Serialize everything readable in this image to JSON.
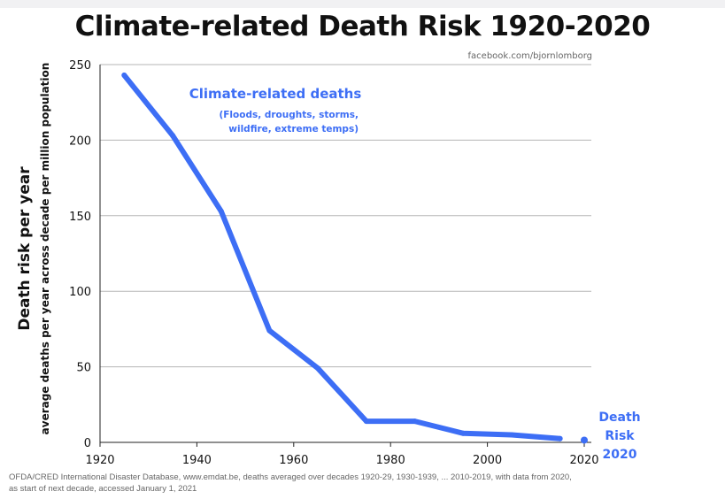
{
  "title": "Climate-related Death Risk 1920-2020",
  "source_credit": "facebook.com/bjornlomborg",
  "ylabel_main": "Death risk per year",
  "ylabel_sub": "average deaths per year across decade per million population",
  "footnote_line1": "OFDA/CRED International Disaster Database, www.emdat.be, deaths averaged over decades 1920-29, 1930-1939, ... 2010-2019, with data from 2020,",
  "footnote_line2": "as start of next decade, accessed January 1, 2021",
  "colors": {
    "series": "#3d6ef5",
    "grid": "#b5b5b5",
    "axis": "#222222"
  },
  "chart_data": {
    "type": "line",
    "xlim": [
      1920,
      2020
    ],
    "ylim": [
      0,
      250
    ],
    "x_ticks": [
      1920,
      1940,
      1960,
      1980,
      2000,
      2020
    ],
    "y_ticks": [
      0,
      50,
      100,
      150,
      200,
      250
    ],
    "grid": "horizontal",
    "series": [
      {
        "name": "Climate-related deaths",
        "x": [
          1925,
          1935,
          1945,
          1955,
          1965,
          1975,
          1985,
          1995,
          2005,
          2015
        ],
        "y": [
          243,
          203,
          153,
          74,
          49,
          14,
          14,
          6,
          5,
          2.5
        ]
      }
    ],
    "series_note": "(Floods, droughts, storms, wildfire, extreme temps)",
    "series_note_lines": [
      "(Floods, droughts, storms,",
      "wildfire, extreme temps)"
    ],
    "point_2020": {
      "x": 2020,
      "y": 1.5,
      "label_lines": [
        "Death",
        "Risk",
        "2020"
      ]
    }
  }
}
